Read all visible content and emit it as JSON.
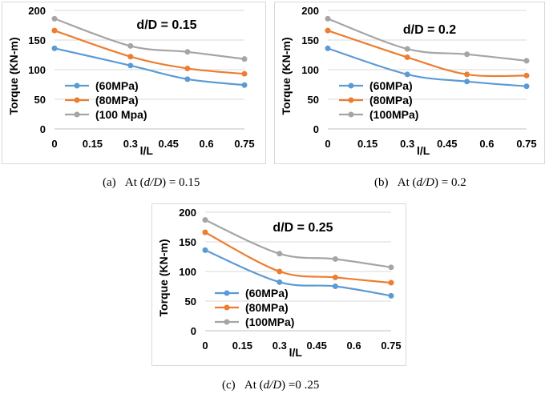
{
  "chart_data": [
    {
      "type": "line",
      "title": "d/D = 0.15",
      "xlabel": "l/L",
      "ylabel": "Torque (KN-m)",
      "x_ticks": [
        "0",
        "0.15",
        "0.3",
        "0.45",
        "0.6",
        "0.75"
      ],
      "y_ticks": [
        "0",
        "50",
        "100",
        "150",
        "200"
      ],
      "xlim": [
        0,
        0.75
      ],
      "ylim": [
        0,
        200
      ],
      "x": [
        0,
        0.3,
        0.525,
        0.75
      ],
      "series": [
        {
          "name": "(60MPa)",
          "color": "#5b9bd5",
          "values": [
            136,
            107,
            84,
            74
          ]
        },
        {
          "name": "(80MPa)",
          "color": "#ed7d31",
          "values": [
            166,
            122,
            102,
            93
          ]
        },
        {
          "name": "(100 Mpa)",
          "color": "#a5a5a5",
          "values": [
            186,
            140,
            130,
            118
          ]
        }
      ],
      "legend_position": "bottom-left",
      "caption_label": "(a)",
      "caption_text": "At (",
      "caption_var": "d/D",
      "caption_value": ") = 0.15"
    },
    {
      "type": "line",
      "title": "d/D = 0.2",
      "xlabel": "l/L",
      "ylabel": "Torque (KN-m)",
      "x_ticks": [
        "0",
        "0.15",
        "0.3",
        "0.45",
        "0.6",
        "0.75"
      ],
      "y_ticks": [
        "0",
        "50",
        "100",
        "150",
        "200"
      ],
      "xlim": [
        0,
        0.75
      ],
      "ylim": [
        0,
        200
      ],
      "x": [
        0,
        0.3,
        0.525,
        0.75
      ],
      "series": [
        {
          "name": "(60MPa)",
          "color": "#5b9bd5",
          "values": [
            136,
            92,
            80,
            72
          ]
        },
        {
          "name": "(80MPa)",
          "color": "#ed7d31",
          "values": [
            166,
            121,
            92,
            90
          ]
        },
        {
          "name": "(100MPa)",
          "color": "#a5a5a5",
          "values": [
            186,
            135,
            126,
            115
          ]
        }
      ],
      "legend_position": "bottom-left",
      "caption_label": "(b)",
      "caption_text": "At (",
      "caption_var": "d/D",
      "caption_value": ") = 0.2"
    },
    {
      "type": "line",
      "title": "d/D = 0.25",
      "xlabel": "l/L",
      "ylabel": "Torque (KN-m)",
      "x_ticks": [
        "0",
        "0.15",
        "0.3",
        "0.45",
        "0.6",
        "0.75"
      ],
      "y_ticks": [
        "0",
        "50",
        "100",
        "150",
        "200"
      ],
      "xlim": [
        0,
        0.75
      ],
      "ylim": [
        0,
        200
      ],
      "x": [
        0,
        0.3,
        0.525,
        0.75
      ],
      "series": [
        {
          "name": "(60MPa)",
          "color": "#5b9bd5",
          "values": [
            136,
            82,
            75,
            59
          ]
        },
        {
          "name": "(80MPa)",
          "color": "#ed7d31",
          "values": [
            166,
            100,
            90,
            81
          ]
        },
        {
          "name": "(100MPa)",
          "color": "#a5a5a5",
          "values": [
            187,
            130,
            121,
            107
          ]
        }
      ],
      "legend_position": "bottom-left",
      "caption_label": "(c)",
      "caption_text": "At (",
      "caption_var": "d/D",
      "caption_value": ") =0 .25"
    }
  ]
}
